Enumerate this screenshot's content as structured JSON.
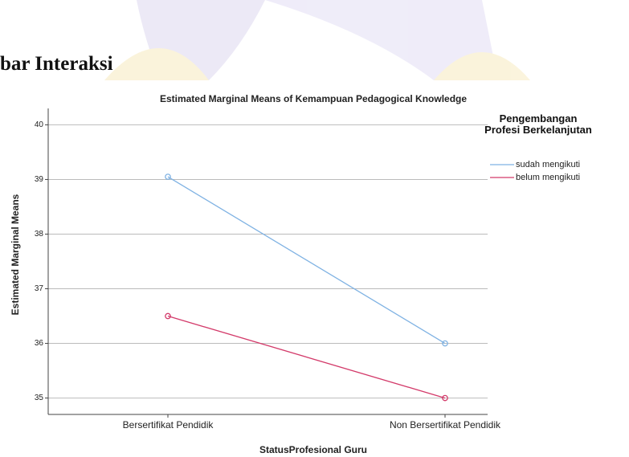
{
  "heading": "bar Interaksi",
  "chart_data": {
    "type": "line",
    "title": "Estimated Marginal Means of Kemampuan Pedagogical Knowledge",
    "xlabel": "StatusProfesional Guru",
    "ylabel": "Estimated Marginal Means",
    "categories": [
      "Bersertifikat Pendidik",
      "Non Bersertifikat Pendidik"
    ],
    "legend_title": "Pengembangan Profesi Berkelanjutan",
    "series": [
      {
        "name": "sudah mengikuti",
        "color": "#7fb2e3",
        "values": [
          39.05,
          36.0
        ]
      },
      {
        "name": "belum mengikuti",
        "color": "#d33a6a",
        "values": [
          36.5,
          35.0
        ]
      }
    ],
    "ylim": [
      34.7,
      40.3
    ],
    "yticks": [
      35,
      36,
      37,
      38,
      39,
      40
    ],
    "grid": true,
    "legend": "right"
  }
}
